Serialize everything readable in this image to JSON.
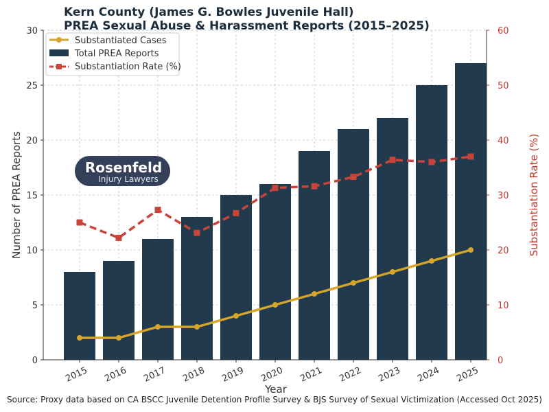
{
  "chart_data": {
    "type": "bar",
    "title": [
      "Kern County (James G. Bowles Juvenile Hall)",
      "PREA Sexual Abuse & Harassment Reports (2015–2025)"
    ],
    "xlabel": "Year",
    "ylabel": "Number of PREA Reports",
    "y2label": "Substantiation Rate (%)",
    "categories": [
      "2015",
      "2016",
      "2017",
      "2018",
      "2019",
      "2020",
      "2021",
      "2022",
      "2023",
      "2024",
      "2025"
    ],
    "ylim": [
      0,
      30
    ],
    "yticks": [
      0,
      5,
      10,
      15,
      20,
      25,
      30
    ],
    "y2lim": [
      0,
      60
    ],
    "y2ticks": [
      0,
      10,
      20,
      30,
      40,
      50,
      60
    ],
    "grid": true,
    "legend_position": "top-left",
    "series": [
      {
        "name": "Substantiated Cases",
        "type": "line",
        "axis": "left",
        "color": "#d4a52a",
        "values": [
          2,
          2,
          3,
          3,
          4,
          5,
          6,
          7,
          8,
          9,
          10
        ]
      },
      {
        "name": "Total PREA Reports",
        "type": "bar",
        "axis": "left",
        "color": "#213a4d",
        "values": [
          8,
          9,
          11,
          13,
          15,
          16,
          19,
          21,
          22,
          25,
          27
        ]
      },
      {
        "name": "Substantiation Rate (%)",
        "type": "line",
        "axis": "right",
        "style": "dashed",
        "color": "#c8443a",
        "values": [
          25.0,
          22.2,
          27.3,
          23.1,
          26.7,
          31.3,
          31.6,
          33.3,
          36.4,
          36.0,
          37.0
        ]
      }
    ],
    "source": "Source: Proxy data based on CA BSCC Juvenile Detention Profile Survey & BJS Survey of Sexual Victimization (Accessed Oct 2025)"
  },
  "logo": {
    "name": "Rosenfeld",
    "sub": "Injury Lawyers",
    "bg": "#34405a"
  }
}
